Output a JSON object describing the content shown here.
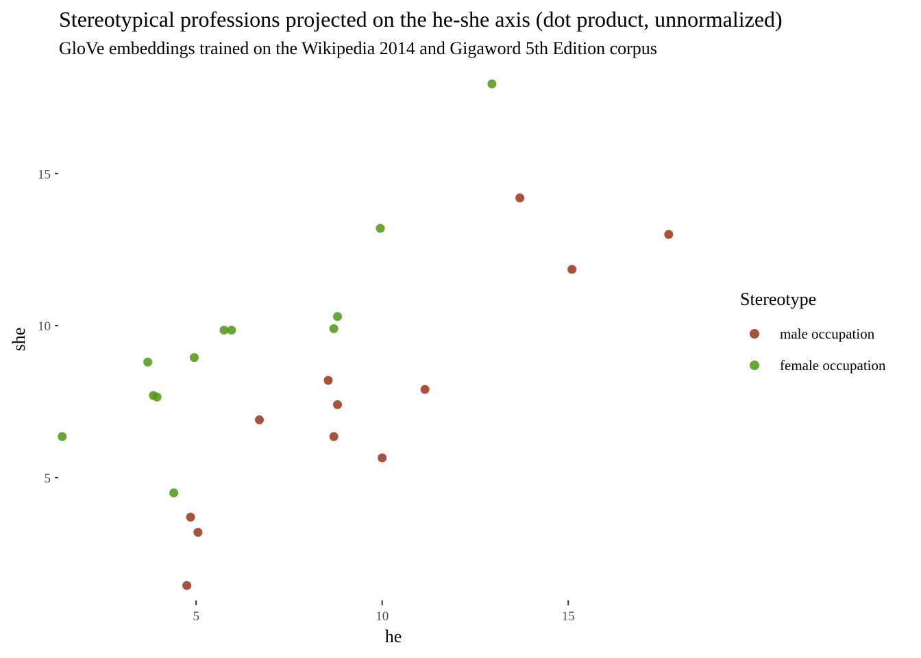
{
  "chart_data": {
    "type": "scatter",
    "title": "Stereotypical professions projected on the he-she axis (dot product, unnormalized)",
    "subtitle": "GloVe embeddings trained on the Wikipedia 2014 and Gigaword 5th Edition corpus",
    "xlabel": "he",
    "ylabel": "she",
    "xlim": [
      1.35,
      19.25
    ],
    "ylim": [
      1.05,
      18.05
    ],
    "xticks": [
      5,
      10,
      15
    ],
    "yticks": [
      5,
      10,
      15
    ],
    "grid": false,
    "legend_position": "right",
    "legend_title": "Stereotype",
    "series": [
      {
        "name": "male occupation",
        "color": "#993516",
        "points": [
          {
            "x": 13.7,
            "y": 14.2
          },
          {
            "x": 17.7,
            "y": 13.0
          },
          {
            "x": 15.1,
            "y": 11.85
          },
          {
            "x": 11.15,
            "y": 7.9
          },
          {
            "x": 8.55,
            "y": 8.2
          },
          {
            "x": 8.8,
            "y": 7.4
          },
          {
            "x": 6.7,
            "y": 6.9
          },
          {
            "x": 8.7,
            "y": 6.35
          },
          {
            "x": 10.0,
            "y": 5.65
          },
          {
            "x": 4.85,
            "y": 3.7
          },
          {
            "x": 5.05,
            "y": 3.2
          },
          {
            "x": 4.75,
            "y": 1.45
          }
        ]
      },
      {
        "name": "female occupation",
        "color": "#4d9712",
        "points": [
          {
            "x": 12.95,
            "y": 17.95
          },
          {
            "x": 9.95,
            "y": 13.2
          },
          {
            "x": 8.8,
            "y": 10.3
          },
          {
            "x": 8.7,
            "y": 9.9
          },
          {
            "x": 5.75,
            "y": 9.85
          },
          {
            "x": 5.95,
            "y": 9.85
          },
          {
            "x": 4.95,
            "y": 8.95
          },
          {
            "x": 3.7,
            "y": 8.8
          },
          {
            "x": 3.85,
            "y": 7.7
          },
          {
            "x": 3.95,
            "y": 7.65
          },
          {
            "x": 1.4,
            "y": 6.35
          },
          {
            "x": 4.4,
            "y": 4.5
          }
        ]
      }
    ]
  }
}
